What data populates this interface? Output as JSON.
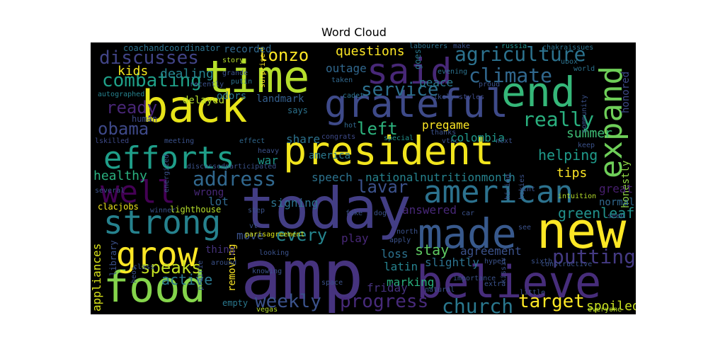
{
  "chart_data": {
    "type": "wordcloud",
    "title": "Word Cloud",
    "background": "#000000",
    "colormap": "viridis",
    "words": [
      {
        "text": "amp",
        "weight": 1.0,
        "color": "#46337e"
      },
      {
        "text": "today",
        "weight": 0.95,
        "color": "#433e85"
      },
      {
        "text": "president",
        "weight": 0.9,
        "color": "#f1e51d"
      },
      {
        "text": "back",
        "weight": 0.85,
        "color": "#e7e419"
      },
      {
        "text": "time",
        "weight": 0.85,
        "color": "#b5de2b"
      },
      {
        "text": "food",
        "weight": 0.8,
        "color": "#84d44b"
      },
      {
        "text": "believe",
        "weight": 0.8,
        "color": "#472d7b"
      },
      {
        "text": "made",
        "weight": 0.8,
        "color": "#38598c"
      },
      {
        "text": "new",
        "weight": 0.8,
        "color": "#fde725"
      },
      {
        "text": "end",
        "weight": 0.78,
        "color": "#35b779"
      },
      {
        "text": "grateful",
        "weight": 0.75,
        "color": "#3e4a89"
      },
      {
        "text": "efforts",
        "weight": 0.7,
        "color": "#1f9e89"
      },
      {
        "text": "strong",
        "weight": 0.72,
        "color": "#26828e"
      },
      {
        "text": "grow",
        "weight": 0.72,
        "color": "#fde725"
      },
      {
        "text": "said",
        "weight": 0.7,
        "color": "#482878"
      },
      {
        "text": "expand",
        "weight": 0.68,
        "color": "#6ece58"
      },
      {
        "text": "well",
        "weight": 0.66,
        "color": "#440154"
      },
      {
        "text": "american",
        "weight": 0.66,
        "color": "#2c728e"
      },
      {
        "text": "church",
        "weight": 0.45,
        "color": "#2a788e"
      },
      {
        "text": "progress",
        "weight": 0.45,
        "color": "#472a7a"
      },
      {
        "text": "weekly",
        "weight": 0.45,
        "color": "#3b528b"
      },
      {
        "text": "target",
        "weight": 0.45,
        "color": "#fde725"
      },
      {
        "text": "putting",
        "weight": 0.45,
        "color": "#443a83"
      },
      {
        "text": "agriculture",
        "weight": 0.45,
        "color": "#2c728e"
      },
      {
        "text": "climate",
        "weight": 0.45,
        "color": "#31688e"
      },
      {
        "text": "really",
        "weight": 0.45,
        "color": "#2ab07f"
      },
      {
        "text": "combating",
        "weight": 0.45,
        "color": "#1fa088"
      },
      {
        "text": "discusses",
        "weight": 0.45,
        "color": "#414487"
      },
      {
        "text": "address",
        "weight": 0.42,
        "color": "#31688e"
      },
      {
        "text": "service",
        "weight": 0.42,
        "color": "#2d708e"
      },
      {
        "text": "obama",
        "weight": 0.4,
        "color": "#3e4989"
      },
      {
        "text": "lonzo",
        "weight": 0.4,
        "color": "#fde725"
      },
      {
        "text": "speaks",
        "weight": 0.38,
        "color": "#c2df23"
      },
      {
        "text": "ready",
        "weight": 0.38,
        "color": "#482677"
      },
      {
        "text": "left",
        "weight": 0.38,
        "color": "#2db27d"
      },
      {
        "text": "lavar",
        "weight": 0.36,
        "color": "#3b528b"
      },
      {
        "text": "every",
        "weight": 0.36,
        "color": "#25858e"
      },
      {
        "text": "healthy",
        "weight": 0.34,
        "color": "#2ab07f"
      },
      {
        "text": "stay",
        "weight": 0.34,
        "color": "#5ec962"
      },
      {
        "text": "active",
        "weight": 0.32,
        "color": "#2a778e"
      },
      {
        "text": "summer",
        "weight": 0.3,
        "color": "#3dbc74"
      },
      {
        "text": "helping",
        "weight": 0.3,
        "color": "#1f9a8a"
      },
      {
        "text": "kids",
        "weight": 0.3,
        "color": "#f1e51d"
      },
      {
        "text": "greenleaf",
        "weight": 0.3,
        "color": "#21918c"
      },
      {
        "text": "honestly",
        "weight": 0.22,
        "color": "#8fd744"
      },
      {
        "text": "honored",
        "weight": 0.22,
        "color": "#3e4a89"
      },
      {
        "text": "great",
        "weight": 0.24,
        "color": "#481f70"
      },
      {
        "text": "tips",
        "weight": 0.28,
        "color": "#fde725"
      },
      {
        "text": "spoiled",
        "weight": 0.26,
        "color": "#c8e020"
      },
      {
        "text": "questions",
        "weight": 0.28,
        "color": "#fde725"
      },
      {
        "text": "dealing",
        "weight": 0.26,
        "color": "#26828e"
      },
      {
        "text": "share",
        "weight": 0.24,
        "color": "#2c728e"
      },
      {
        "text": "signing",
        "weight": 0.24,
        "color": "#2c728e"
      },
      {
        "text": "speech",
        "weight": 0.24,
        "color": "#2c728e"
      },
      {
        "text": "nationalnutritionmonth",
        "weight": 0.24,
        "color": "#26828e"
      },
      {
        "text": "outage",
        "weight": 0.24,
        "color": "#31688e"
      },
      {
        "text": "peace",
        "weight": 0.24,
        "color": "#2a788e"
      },
      {
        "text": "colombia",
        "weight": 0.22,
        "color": "#1f988b"
      },
      {
        "text": "pregame",
        "weight": 0.22,
        "color": "#fde725"
      },
      {
        "text": "america",
        "weight": 0.2,
        "color": "#2a788e"
      },
      {
        "text": "agreement",
        "weight": 0.22,
        "color": "#3b528b"
      },
      {
        "text": "answered",
        "weight": 0.22,
        "color": "#482878"
      },
      {
        "text": "slightly",
        "weight": 0.22,
        "color": "#2c728e"
      },
      {
        "text": "marking",
        "weight": 0.22,
        "color": "#2ab07f"
      },
      {
        "text": "latin",
        "weight": 0.22,
        "color": "#26828e"
      },
      {
        "text": "loss",
        "weight": 0.22,
        "color": "#2c728e"
      },
      {
        "text": "play",
        "weight": 0.2,
        "color": "#482878"
      },
      {
        "text": "friday",
        "weight": 0.2,
        "color": "#46327e"
      },
      {
        "text": "appliances",
        "weight": 0.2,
        "color": "#d8e219"
      },
      {
        "text": "library",
        "weight": 0.16,
        "color": "#3b528b"
      },
      {
        "text": "war",
        "weight": 0.22,
        "color": "#1f988b"
      },
      {
        "text": "lot",
        "weight": 0.22,
        "color": "#31688e"
      },
      {
        "text": "move",
        "weight": 0.2,
        "color": "#3b528b"
      },
      {
        "text": "removing",
        "weight": 0.18,
        "color": "#fde725"
      },
      {
        "text": "empty",
        "weight": 0.14,
        "color": "#2a788e"
      },
      {
        "text": "delayed",
        "weight": 0.18,
        "color": "#b5de2b"
      },
      {
        "text": "odors",
        "weight": 0.18,
        "color": "#2a788e"
      },
      {
        "text": "landmark",
        "weight": 0.18,
        "color": "#355f8d"
      },
      {
        "text": "recorded",
        "weight": 0.18,
        "color": "#31688e"
      },
      {
        "text": "coachandcoordinator",
        "weight": 0.16,
        "color": "#2c728e"
      },
      {
        "text": "human",
        "weight": 0.14,
        "color": "#3e4a89"
      },
      {
        "text": "wrong",
        "weight": 0.16,
        "color": "#482878"
      },
      {
        "text": "normal",
        "weight": 0.16,
        "color": "#31688e"
      },
      {
        "text": "thing",
        "weight": 0.16,
        "color": "#46337e"
      },
      {
        "text": "says",
        "weight": 0.14,
        "color": "#2c728e"
      },
      {
        "text": "goes",
        "weight": 0.14,
        "color": "#2a788e"
      },
      {
        "text": "story",
        "weight": 0.12,
        "color": "#b5de2b"
      },
      {
        "text": "grande",
        "weight": 0.1,
        "color": "#3b528b"
      },
      {
        "text": "putin",
        "weight": 0.1,
        "color": "#2c728e"
      },
      {
        "text": "surprise",
        "weight": 0.1,
        "color": "#fde725"
      },
      {
        "text": "taken",
        "weight": 0.1,
        "color": "#31688e"
      },
      {
        "text": "cadet",
        "weight": 0.1,
        "color": "#2c728e"
      },
      {
        "text": "likely",
        "weight": 0.12,
        "color": "#3b528b"
      },
      {
        "text": "styles",
        "weight": 0.12,
        "color": "#3e4a89"
      },
      {
        "text": "proud",
        "weight": 0.12,
        "color": "#3b528b"
      },
      {
        "text": "evening",
        "weight": 0.1,
        "color": "#2c728e"
      },
      {
        "text": "make",
        "weight": 0.1,
        "color": "#3b528b"
      },
      {
        "text": "labourers",
        "weight": 0.12,
        "color": "#2c728e"
      },
      {
        "text": "russia",
        "weight": 0.1,
        "color": "#21918c"
      },
      {
        "text": "chakraissues",
        "weight": 0.12,
        "color": "#2c728e"
      },
      {
        "text": "ubox",
        "weight": 0.1,
        "color": "#2c728e"
      },
      {
        "text": "world",
        "weight": 0.1,
        "color": "#2c728e"
      },
      {
        "text": "community",
        "weight": 0.1,
        "color": "#3b528b"
      },
      {
        "text": "autographed",
        "weight": 0.12,
        "color": "#26828e"
      },
      {
        "text": "recently",
        "weight": 0.1,
        "color": "#3b528b"
      },
      {
        "text": "hot",
        "weight": 0.1,
        "color": "#31688e"
      },
      {
        "text": "special",
        "weight": 0.1,
        "color": "#21918c"
      },
      {
        "text": "congrats",
        "weight": 0.1,
        "color": "#3e4a89"
      },
      {
        "text": "thanks",
        "weight": 0.1,
        "color": "#3b528b"
      },
      {
        "text": "vtcc",
        "weight": 0.1,
        "color": "#3b528b"
      },
      {
        "text": "next",
        "weight": 0.1,
        "color": "#3b528b"
      },
      {
        "text": "keep",
        "weight": 0.1,
        "color": "#3b528b"
      },
      {
        "text": "lskilled",
        "weight": 0.1,
        "color": "#3e4a89"
      },
      {
        "text": "meeting",
        "weight": 0.1,
        "color": "#3b528b"
      },
      {
        "text": "effect",
        "weight": 0.1,
        "color": "#31688e"
      },
      {
        "text": "heavy",
        "weight": 0.1,
        "color": "#3b528b"
      },
      {
        "text": "energized",
        "weight": 0.1,
        "color": "#3b528b"
      },
      {
        "text": "discussed",
        "weight": 0.1,
        "color": "#3b528b"
      },
      {
        "text": "participated",
        "weight": 0.1,
        "color": "#3b528b"
      },
      {
        "text": "several",
        "weight": 0.1,
        "color": "#3b528b"
      },
      {
        "text": "hiring",
        "weight": 0.1,
        "color": "#3b528b"
      },
      {
        "text": "hokies",
        "weight": 0.1,
        "color": "#3b528b"
      },
      {
        "text": "intuition",
        "weight": 0.1,
        "color": "#b5de2b"
      },
      {
        "text": "int",
        "weight": 0.1,
        "color": "#3b528b"
      },
      {
        "text": "clacjobs",
        "weight": 0.12,
        "color": "#f1e51d"
      },
      {
        "text": "winner",
        "weight": 0.1,
        "color": "#3b528b"
      },
      {
        "text": "lighthouse",
        "weight": 0.12,
        "color": "#b5de2b"
      },
      {
        "text": "fake",
        "weight": 0.1,
        "color": "#3b528b"
      },
      {
        "text": "dog",
        "weight": 0.1,
        "color": "#3b528b"
      },
      {
        "text": "step",
        "weight": 0.1,
        "color": "#3b528b"
      },
      {
        "text": "car",
        "weight": 0.1,
        "color": "#3b528b"
      },
      {
        "text": "see",
        "weight": 0.1,
        "color": "#3b528b"
      },
      {
        "text": "seen",
        "weight": 0.1,
        "color": "#3b528b"
      },
      {
        "text": "vt",
        "weight": 0.1,
        "color": "#3b528b"
      },
      {
        "text": "parisagreement",
        "weight": 0.12,
        "color": "#d8e219"
      },
      {
        "text": "north",
        "weight": 0.1,
        "color": "#3b528b"
      },
      {
        "text": "apply",
        "weight": 0.1,
        "color": "#3b528b"
      },
      {
        "text": "sixth",
        "weight": 0.1,
        "color": "#3b528b"
      },
      {
        "text": "hyped",
        "weight": 0.1,
        "color": "#3b528b"
      },
      {
        "text": "constructive",
        "weight": 0.1,
        "color": "#3b528b"
      },
      {
        "text": "class",
        "weight": 0.1,
        "color": "#3b528b"
      },
      {
        "text": "around",
        "weight": 0.1,
        "color": "#3b528b"
      },
      {
        "text": "heos",
        "weight": 0.1,
        "color": "#3b528b"
      },
      {
        "text": "prairie",
        "weight": 0.1,
        "color": "#3b528b"
      },
      {
        "text": "knowing",
        "weight": 0.1,
        "color": "#3b528b"
      },
      {
        "text": "vegas",
        "weight": 0.1,
        "color": "#b5de2b"
      },
      {
        "text": "space",
        "weight": 0.1,
        "color": "#3b528b"
      },
      {
        "text": "natural",
        "weight": 0.1,
        "color": "#3b528b"
      },
      {
        "text": "importance",
        "weight": 0.1,
        "color": "#3b528b"
      },
      {
        "text": "extra",
        "weight": 0.1,
        "color": "#3b528b"
      },
      {
        "text": "little",
        "weight": 0.1,
        "color": "#3b528b"
      },
      {
        "text": "everyone",
        "weight": 0.1,
        "color": "#b5de2b"
      },
      {
        "text": "kissiv",
        "weight": 0.1,
        "color": "#3b528b"
      },
      {
        "text": "looking",
        "weight": 0.1,
        "color": "#3b528b"
      }
    ]
  }
}
